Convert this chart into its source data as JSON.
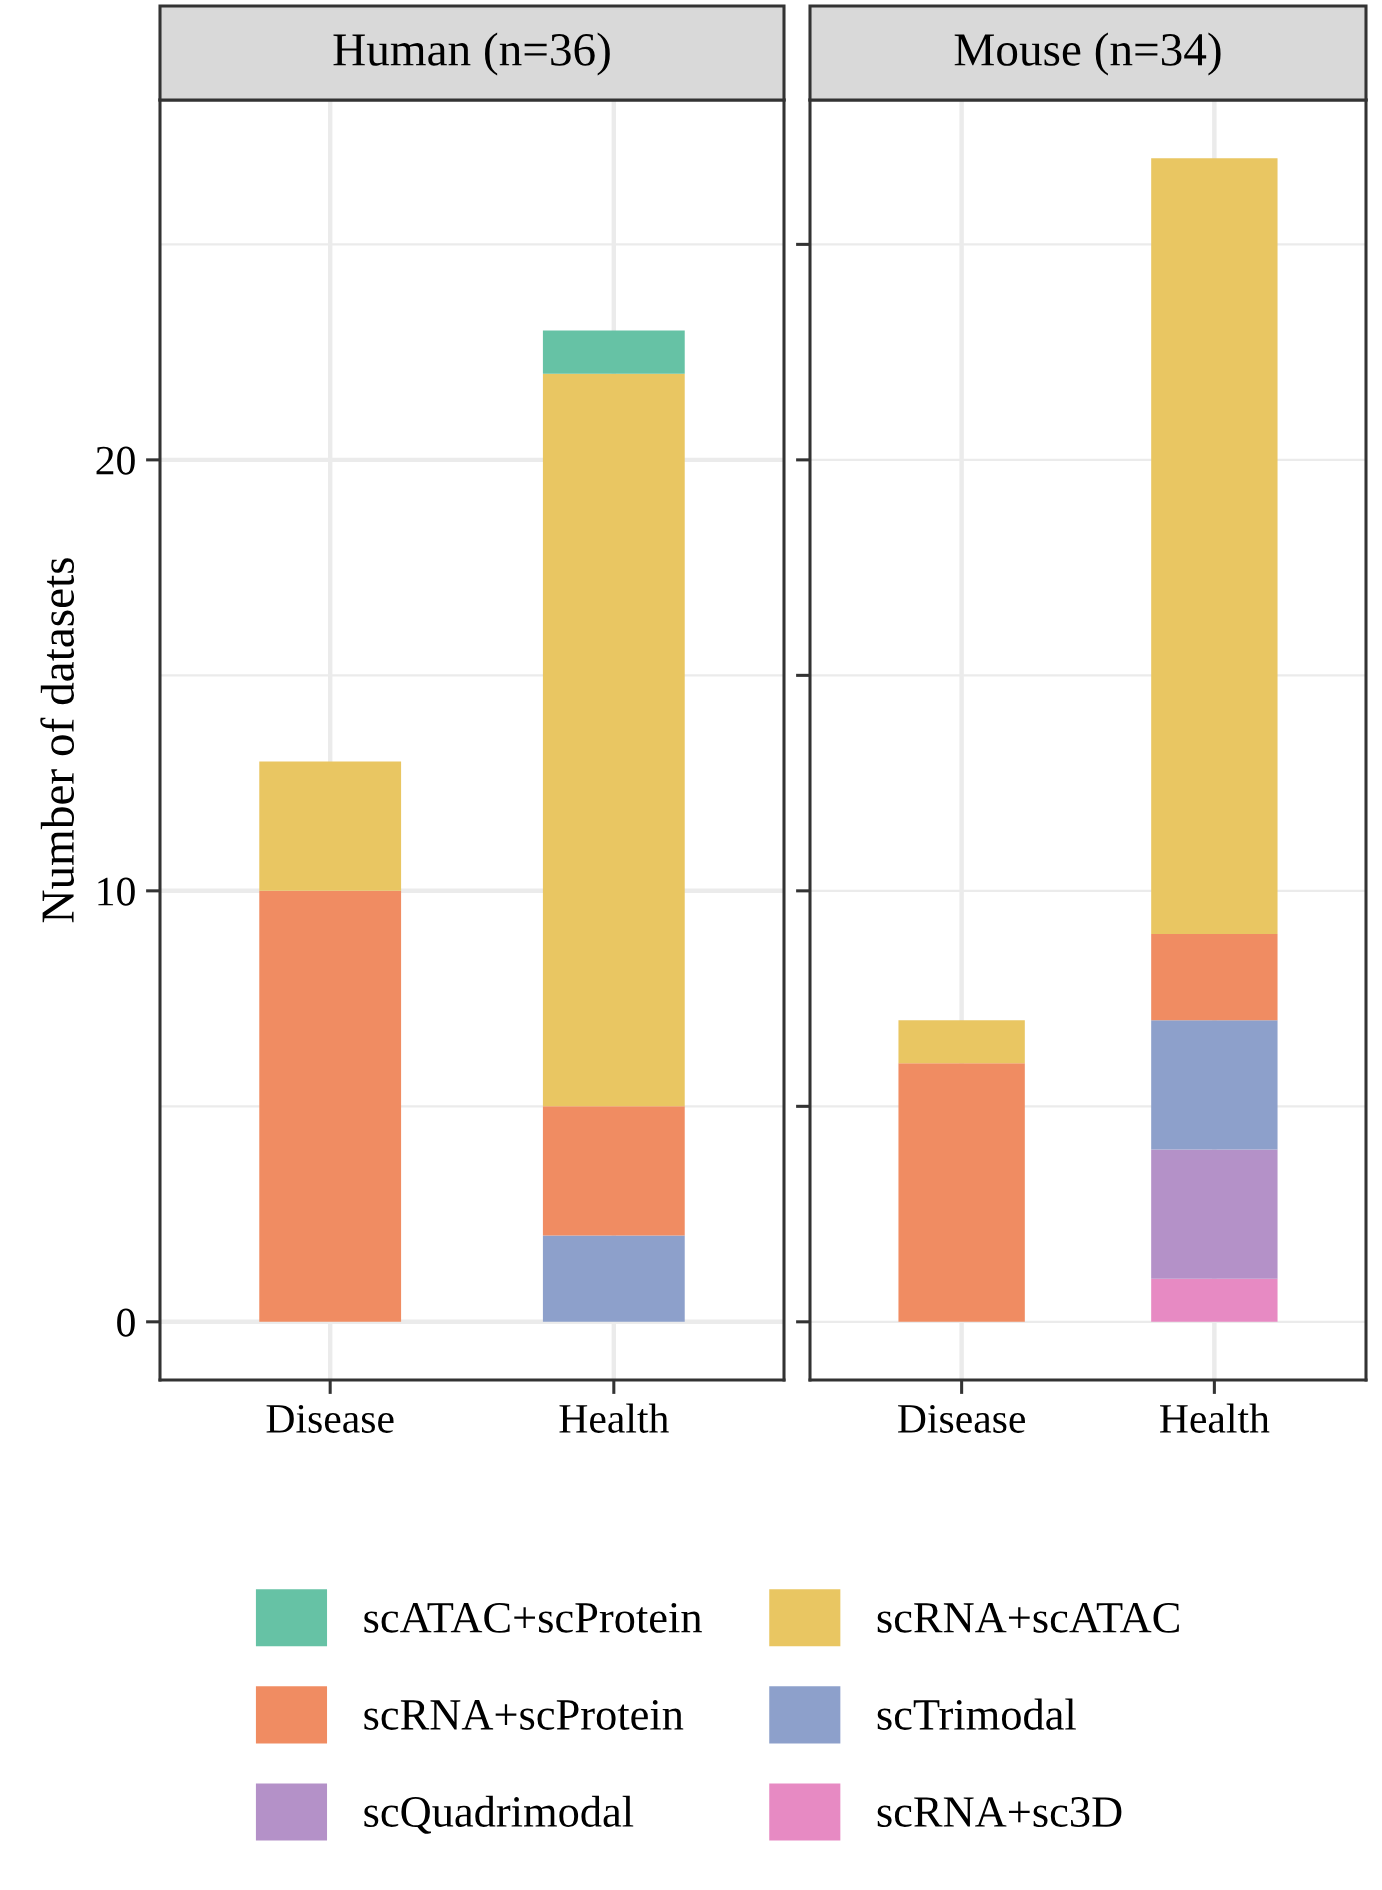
{
  "chart_data": [
    {
      "type": "bar",
      "stacked": true,
      "title": "Human (n=36)",
      "ylabel": "Number of datasets",
      "categories": [
        "Disease",
        "Health"
      ],
      "ylim": [
        -1.35,
        28.35
      ],
      "yticks": [
        {
          "value": 0,
          "label": "0"
        },
        {
          "value": 5,
          "label": null
        },
        {
          "value": 10,
          "label": "10"
        },
        {
          "value": 15,
          "label": null
        },
        {
          "value": 20,
          "label": "20"
        },
        {
          "value": 25,
          "label": null
        }
      ],
      "grid": true,
      "legend": "bottom",
      "series": [
        {
          "name": "scRNA+sc3D",
          "color": "#e78ac3",
          "values": [
            null,
            null
          ]
        },
        {
          "name": "scQuadrimodal",
          "color": "#b491c8",
          "values": [
            null,
            null
          ]
        },
        {
          "name": "scTrimodal",
          "color": "#8da0cb",
          "values": [
            null,
            2
          ]
        },
        {
          "name": "scRNA+scProtein",
          "color": "#f08c62",
          "values": [
            10,
            3
          ]
        },
        {
          "name": "scRNA+scATAC",
          "color": "#e9c662",
          "values": [
            3,
            17
          ]
        },
        {
          "name": "scATAC+scProtein",
          "color": "#66c2a5",
          "values": [
            null,
            1
          ]
        }
      ]
    },
    {
      "type": "bar",
      "stacked": true,
      "title": "Mouse (n=34)",
      "categories": [
        "Disease",
        "Health"
      ],
      "ylim": [
        -1.35,
        28.35
      ],
      "yticks": [
        {
          "value": 0,
          "label": null
        },
        {
          "value": 5,
          "label": null
        },
        {
          "value": 10,
          "label": null
        },
        {
          "value": 15,
          "label": null
        },
        {
          "value": 20,
          "label": null
        },
        {
          "value": 25,
          "label": null
        }
      ],
      "grid": true,
      "tick_labels": "x",
      "series": [
        {
          "color": "#e78ac3",
          "values": [
            null,
            1
          ]
        },
        {
          "color": "#b491c8",
          "values": [
            null,
            3
          ]
        },
        {
          "color": "#8da0cb",
          "values": [
            null,
            3
          ]
        },
        {
          "color": "#f08c62",
          "values": [
            6,
            2
          ]
        },
        {
          "color": "#e9c662",
          "values": [
            1,
            18
          ]
        },
        {
          "color": "#66c2a5",
          "values": [
            null,
            null
          ]
        }
      ]
    }
  ]
}
